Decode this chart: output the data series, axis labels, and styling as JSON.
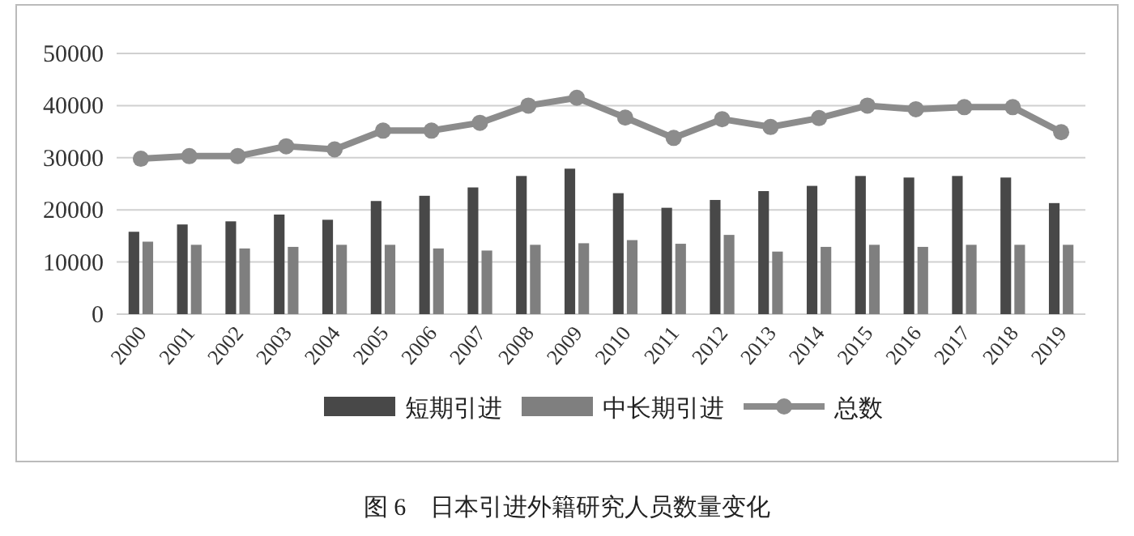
{
  "chart_data": {
    "type": "bar",
    "title": "图 6　日本引进外籍研究人员数量变化",
    "categories": [
      "2000",
      "2001",
      "2002",
      "2003",
      "2004",
      "2005",
      "2006",
      "2007",
      "2008",
      "2009",
      "2010",
      "2011",
      "2012",
      "2013",
      "2014",
      "2015",
      "2016",
      "2017",
      "2018",
      "2019"
    ],
    "series": [
      {
        "name": "短期引进",
        "color": "#484848",
        "values": [
          15800,
          17200,
          17800,
          19100,
          18100,
          21700,
          22700,
          24300,
          26500,
          27900,
          23200,
          20400,
          21900,
          23600,
          24600,
          26500,
          26200,
          26500,
          26200,
          21300
        ]
      },
      {
        "name": "中长期引进",
        "color": "#7f7f7f",
        "values": [
          13900,
          13300,
          12600,
          12900,
          13300,
          13300,
          12600,
          12200,
          13300,
          13600,
          14200,
          13500,
          15200,
          12000,
          12900,
          13300,
          12900,
          13300,
          13300,
          13300
        ]
      },
      {
        "name": "总数",
        "type": "line",
        "color": "#8c8c8c",
        "marker": "circle",
        "values": [
          29800,
          30300,
          30300,
          32200,
          31600,
          35200,
          35200,
          36700,
          40000,
          41500,
          37700,
          33800,
          37400,
          35900,
          37600,
          40000,
          39300,
          39700,
          39700,
          34900
        ]
      }
    ],
    "ylim": [
      0,
      50000
    ],
    "yticks": [
      0,
      10000,
      20000,
      30000,
      40000,
      50000
    ],
    "grid": "y",
    "legend": "bottom"
  }
}
